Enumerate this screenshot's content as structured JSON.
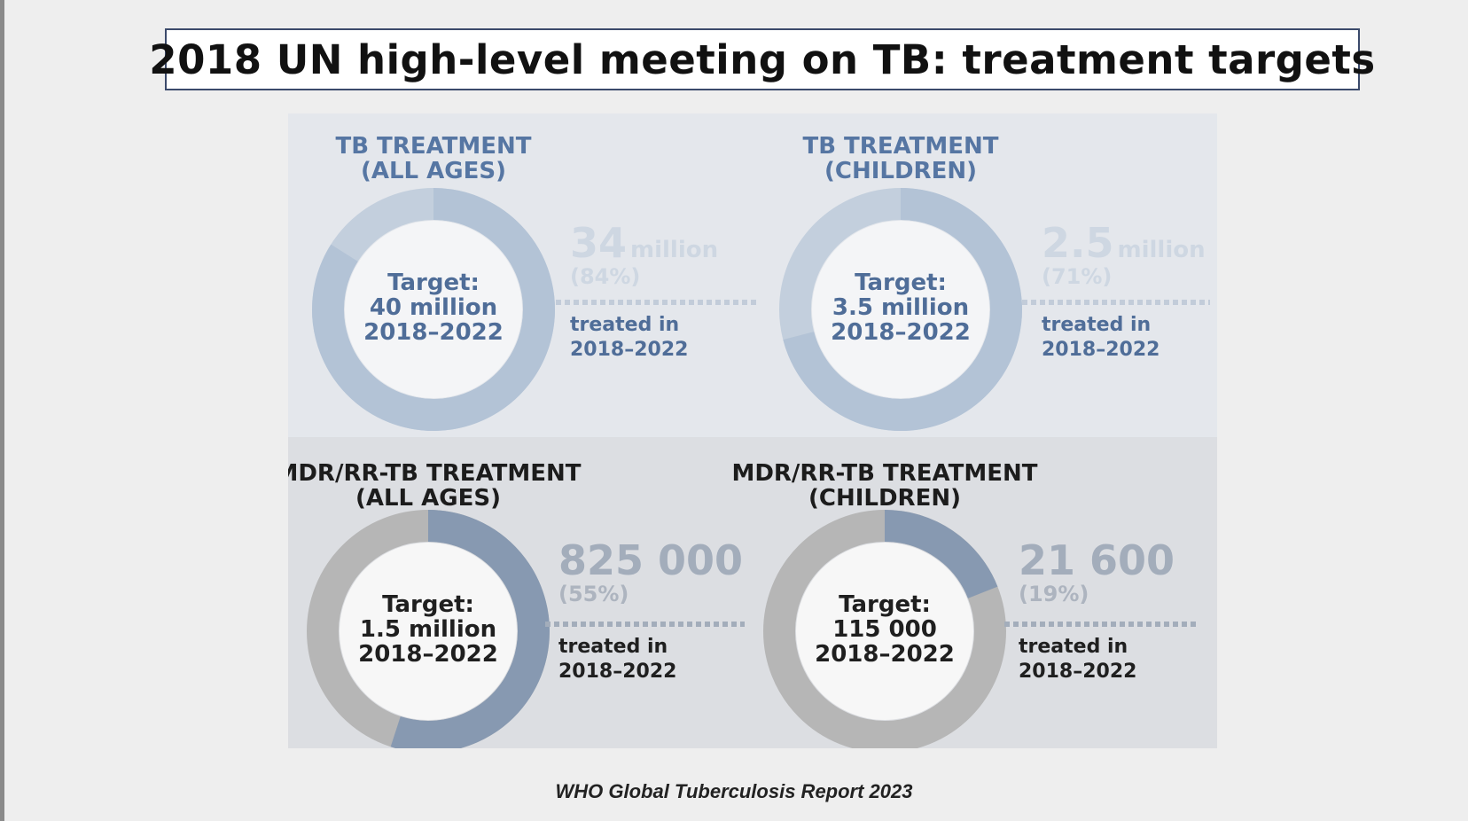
{
  "title": "2018 UN high-level meeting on TB: treatment targets",
  "source": "WHO Global Tuberculosis Report 2023",
  "colors": {
    "top_title": "#5676a3",
    "top_accent": "#b3c3d6",
    "top_track": "#c3cfdd",
    "top_center_text": "#4f6d98",
    "top_value": "#ced7e2",
    "bottom_title": "#1c1c1c",
    "bottom_accent": "#8799b1",
    "bottom_track": "#b6b6b6",
    "bottom_center_text": "#1f1f1f",
    "bottom_value": "#a3adbb",
    "bottom_pct": "#adb4bf"
  },
  "chart_data": [
    {
      "type": "pie",
      "panel": "tb-all-ages",
      "title_lines": [
        "TB TREATMENT",
        "(ALL AGES)"
      ],
      "target_lines": [
        "Target:",
        "40 million",
        "2018–2022"
      ],
      "value": "34",
      "unit": "million",
      "percent_label": "(84%)",
      "percent": 84,
      "treated_lines": [
        "treated in",
        "2018–2022"
      ],
      "theme": "top"
    },
    {
      "type": "pie",
      "panel": "tb-children",
      "title_lines": [
        "TB TREATMENT",
        "(CHILDREN)"
      ],
      "target_lines": [
        "Target:",
        "3.5 million",
        "2018–2022"
      ],
      "value": "2.5",
      "unit": "million",
      "percent_label": "(71%)",
      "percent": 71,
      "treated_lines": [
        "treated in",
        "2018–2022"
      ],
      "theme": "top"
    },
    {
      "type": "pie",
      "panel": "mdr-all-ages",
      "title_lines": [
        "MDR/RR-TB TREATMENT",
        "(ALL AGES)"
      ],
      "target_lines": [
        "Target:",
        "1.5 million",
        "2018–2022"
      ],
      "value": "825 000",
      "unit": "",
      "percent_label": "(55%)",
      "percent": 55,
      "treated_lines": [
        "treated in",
        "2018–2022"
      ],
      "theme": "bottom"
    },
    {
      "type": "pie",
      "panel": "mdr-children",
      "title_lines": [
        "MDR/RR-TB TREATMENT",
        "(CHILDREN)"
      ],
      "target_lines": [
        "Target:",
        "115 000",
        "2018–2022"
      ],
      "value": "21 600",
      "unit": "",
      "percent_label": "(19%)",
      "percent": 19,
      "treated_lines": [
        "treated in",
        "2018–2022"
      ],
      "theme": "bottom"
    }
  ]
}
